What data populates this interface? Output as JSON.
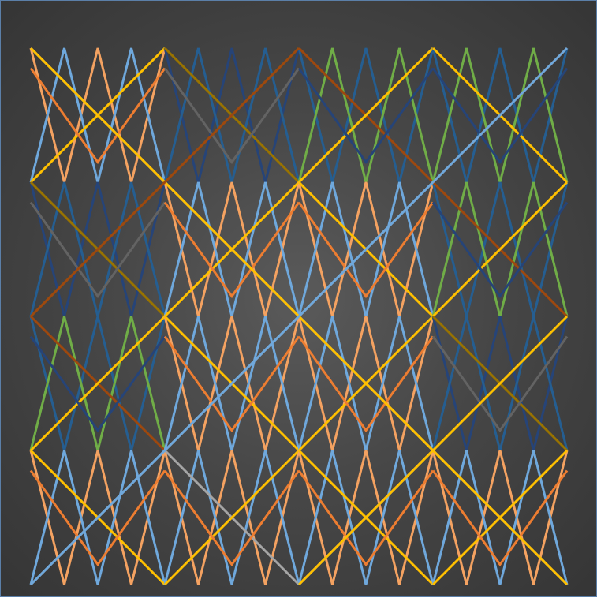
{
  "artwork": {
    "kind": "abstract-zigzag-line-pattern",
    "background": "#474747",
    "frame_border": "#5b7fa8",
    "palette": [
      {
        "name": "orange",
        "hex": "#ed7d31"
      },
      {
        "name": "light-blue",
        "hex": "#6fa8dc"
      },
      {
        "name": "gray",
        "hex": "#a5a5a5"
      },
      {
        "name": "gold",
        "hex": "#ffc000"
      },
      {
        "name": "light-orange",
        "hex": "#f4a261"
      },
      {
        "name": "dark-blue",
        "hex": "#264478"
      },
      {
        "name": "steel-blue",
        "hex": "#255e91"
      },
      {
        "name": "green",
        "hex": "#70ad47"
      },
      {
        "name": "dark-green",
        "hex": "#43682b"
      },
      {
        "name": "olive",
        "hex": "#997300"
      },
      {
        "name": "dark-gray",
        "hex": "#636363"
      },
      {
        "name": "rust",
        "hex": "#9e480e"
      }
    ]
  }
}
